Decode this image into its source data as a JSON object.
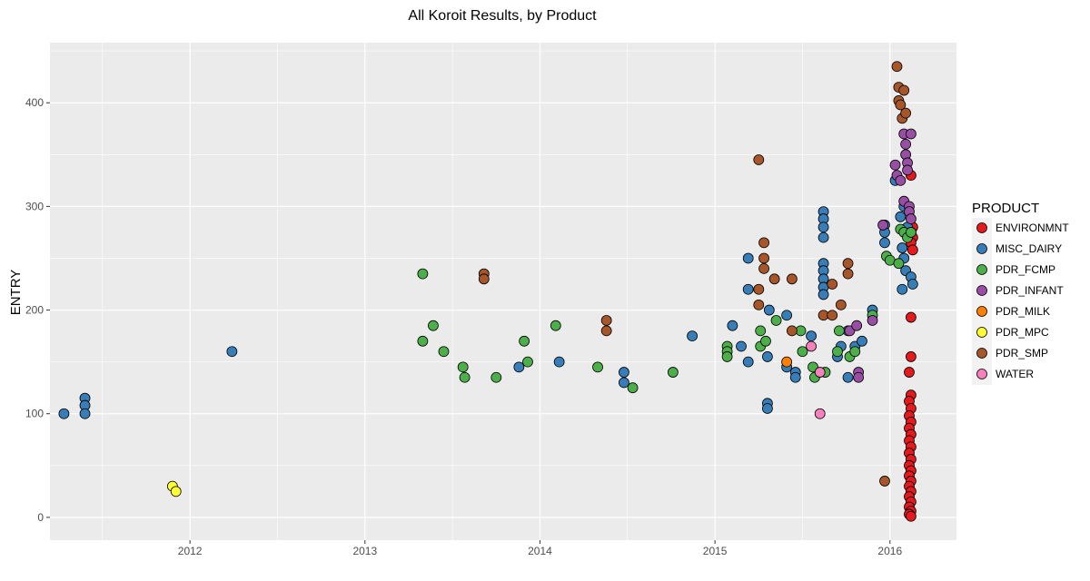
{
  "chart_data": {
    "type": "scatter",
    "title": "All Koroit Results, by Product",
    "xlabel": "",
    "ylabel": "ENTRY",
    "x_is_date": true,
    "xlim": [
      2011.2,
      2016.38
    ],
    "ylim": [
      -22,
      458
    ],
    "x_ticks": [
      2012,
      2013,
      2014,
      2015,
      2016
    ],
    "y_ticks": [
      0,
      100,
      200,
      300,
      400
    ],
    "grid": true,
    "legend": {
      "title": "PRODUCT",
      "position": "right"
    },
    "colors": {
      "panel": "#ebebeb",
      "grid": "#ffffff",
      "point_outline": "#000000"
    },
    "series": [
      {
        "name": "ENVIRONMNT",
        "color": "#e41a1c",
        "points": [
          [
            2016.12,
            330
          ],
          [
            2016.13,
            280
          ],
          [
            2016.12,
            275
          ],
          [
            2016.13,
            270
          ],
          [
            2016.12,
            265
          ],
          [
            2016.13,
            258
          ],
          [
            2016.12,
            193
          ],
          [
            2016.12,
            155
          ],
          [
            2016.11,
            140
          ],
          [
            2016.12,
            118
          ],
          [
            2016.11,
            112
          ],
          [
            2016.12,
            105
          ],
          [
            2016.11,
            98
          ],
          [
            2016.12,
            92
          ],
          [
            2016.11,
            86
          ],
          [
            2016.12,
            80
          ],
          [
            2016.11,
            74
          ],
          [
            2016.12,
            68
          ],
          [
            2016.11,
            62
          ],
          [
            2016.12,
            56
          ],
          [
            2016.11,
            50
          ],
          [
            2016.12,
            45
          ],
          [
            2016.11,
            40
          ],
          [
            2016.12,
            35
          ],
          [
            2016.11,
            30
          ],
          [
            2016.12,
            25
          ],
          [
            2016.11,
            20
          ],
          [
            2016.12,
            15
          ],
          [
            2016.11,
            10
          ],
          [
            2016.12,
            6
          ],
          [
            2016.11,
            3
          ],
          [
            2016.12,
            1
          ]
        ]
      },
      {
        "name": "MISC_DAIRY",
        "color": "#377eb8",
        "points": [
          [
            2011.28,
            100
          ],
          [
            2011.4,
            115
          ],
          [
            2011.4,
            108
          ],
          [
            2011.4,
            100
          ],
          [
            2012.24,
            160
          ],
          [
            2013.88,
            145
          ],
          [
            2014.11,
            150
          ],
          [
            2014.48,
            140
          ],
          [
            2014.48,
            130
          ],
          [
            2014.87,
            175
          ],
          [
            2015.1,
            185
          ],
          [
            2015.15,
            165
          ],
          [
            2015.19,
            250
          ],
          [
            2015.19,
            220
          ],
          [
            2015.19,
            150
          ],
          [
            2015.3,
            155
          ],
          [
            2015.3,
            110
          ],
          [
            2015.3,
            105
          ],
          [
            2015.31,
            200
          ],
          [
            2015.41,
            195
          ],
          [
            2015.41,
            145
          ],
          [
            2015.46,
            140
          ],
          [
            2015.46,
            135
          ],
          [
            2015.55,
            175
          ],
          [
            2015.62,
            295
          ],
          [
            2015.62,
            288
          ],
          [
            2015.62,
            280
          ],
          [
            2015.62,
            270
          ],
          [
            2015.62,
            245
          ],
          [
            2015.62,
            238
          ],
          [
            2015.62,
            230
          ],
          [
            2015.62,
            222
          ],
          [
            2015.62,
            215
          ],
          [
            2015.7,
            155
          ],
          [
            2015.72,
            165
          ],
          [
            2015.76,
            180
          ],
          [
            2015.76,
            135
          ],
          [
            2015.8,
            165
          ],
          [
            2015.84,
            170
          ],
          [
            2015.9,
            200
          ],
          [
            2015.97,
            282
          ],
          [
            2015.97,
            275
          ],
          [
            2015.97,
            265
          ],
          [
            2016.03,
            325
          ],
          [
            2016.06,
            290
          ],
          [
            2016.07,
            260
          ],
          [
            2016.07,
            220
          ],
          [
            2016.08,
            300
          ],
          [
            2016.08,
            250
          ],
          [
            2016.09,
            238
          ],
          [
            2016.1,
            280
          ],
          [
            2016.12,
            232
          ],
          [
            2016.13,
            225
          ]
        ]
      },
      {
        "name": "PDR_FCMP",
        "color": "#4daf4a",
        "points": [
          [
            2013.33,
            235
          ],
          [
            2013.33,
            170
          ],
          [
            2013.39,
            185
          ],
          [
            2013.45,
            160
          ],
          [
            2013.56,
            145
          ],
          [
            2013.57,
            135
          ],
          [
            2013.75,
            135
          ],
          [
            2013.91,
            170
          ],
          [
            2013.93,
            150
          ],
          [
            2014.09,
            185
          ],
          [
            2014.33,
            145
          ],
          [
            2014.53,
            125
          ],
          [
            2014.76,
            140
          ],
          [
            2015.07,
            165
          ],
          [
            2015.07,
            160
          ],
          [
            2015.07,
            155
          ],
          [
            2015.26,
            180
          ],
          [
            2015.26,
            165
          ],
          [
            2015.29,
            170
          ],
          [
            2015.35,
            190
          ],
          [
            2015.49,
            180
          ],
          [
            2015.5,
            160
          ],
          [
            2015.56,
            145
          ],
          [
            2015.57,
            135
          ],
          [
            2015.63,
            140
          ],
          [
            2015.7,
            160
          ],
          [
            2015.71,
            180
          ],
          [
            2015.77,
            155
          ],
          [
            2015.8,
            160
          ],
          [
            2015.9,
            195
          ],
          [
            2015.98,
            252
          ],
          [
            2016.0,
            248
          ],
          [
            2016.05,
            245
          ],
          [
            2016.06,
            278
          ],
          [
            2016.08,
            275
          ],
          [
            2016.1,
            270
          ],
          [
            2016.12,
            275
          ]
        ]
      },
      {
        "name": "PDR_INFANT",
        "color": "#984ea3",
        "points": [
          [
            2015.77,
            180
          ],
          [
            2015.81,
            185
          ],
          [
            2015.82,
            140
          ],
          [
            2015.82,
            135
          ],
          [
            2015.9,
            190
          ],
          [
            2015.96,
            282
          ],
          [
            2016.03,
            340
          ],
          [
            2016.04,
            330
          ],
          [
            2016.06,
            325
          ],
          [
            2016.08,
            305
          ],
          [
            2016.08,
            370
          ],
          [
            2016.09,
            360
          ],
          [
            2016.09,
            350
          ],
          [
            2016.1,
            342
          ],
          [
            2016.1,
            335
          ],
          [
            2016.11,
            300
          ],
          [
            2016.11,
            295
          ],
          [
            2016.12,
            288
          ],
          [
            2016.12,
            370
          ]
        ]
      },
      {
        "name": "PDR_MILK",
        "color": "#ff7f00",
        "points": [
          [
            2015.41,
            150
          ]
        ]
      },
      {
        "name": "PDR_MPC",
        "color": "#ffff33",
        "points": [
          [
            2011.9,
            30
          ],
          [
            2011.92,
            25
          ]
        ]
      },
      {
        "name": "PDR_SMP",
        "color": "#a65628",
        "points": [
          [
            2013.68,
            235
          ],
          [
            2013.68,
            230
          ],
          [
            2014.38,
            190
          ],
          [
            2014.38,
            180
          ],
          [
            2015.25,
            345
          ],
          [
            2015.25,
            220
          ],
          [
            2015.25,
            205
          ],
          [
            2015.28,
            265
          ],
          [
            2015.28,
            250
          ],
          [
            2015.28,
            240
          ],
          [
            2015.34,
            230
          ],
          [
            2015.44,
            230
          ],
          [
            2015.44,
            180
          ],
          [
            2015.62,
            195
          ],
          [
            2015.67,
            195
          ],
          [
            2015.67,
            225
          ],
          [
            2015.72,
            205
          ],
          [
            2015.76,
            245
          ],
          [
            2015.76,
            235
          ],
          [
            2015.97,
            35
          ],
          [
            2016.04,
            435
          ],
          [
            2016.05,
            415
          ],
          [
            2016.05,
            402
          ],
          [
            2016.06,
            398
          ],
          [
            2016.07,
            385
          ],
          [
            2016.08,
            412
          ],
          [
            2016.09,
            390
          ]
        ]
      },
      {
        "name": "WATER",
        "color": "#f781bf",
        "points": [
          [
            2015.55,
            165
          ],
          [
            2015.6,
            140
          ],
          [
            2015.6,
            100
          ]
        ]
      }
    ]
  }
}
